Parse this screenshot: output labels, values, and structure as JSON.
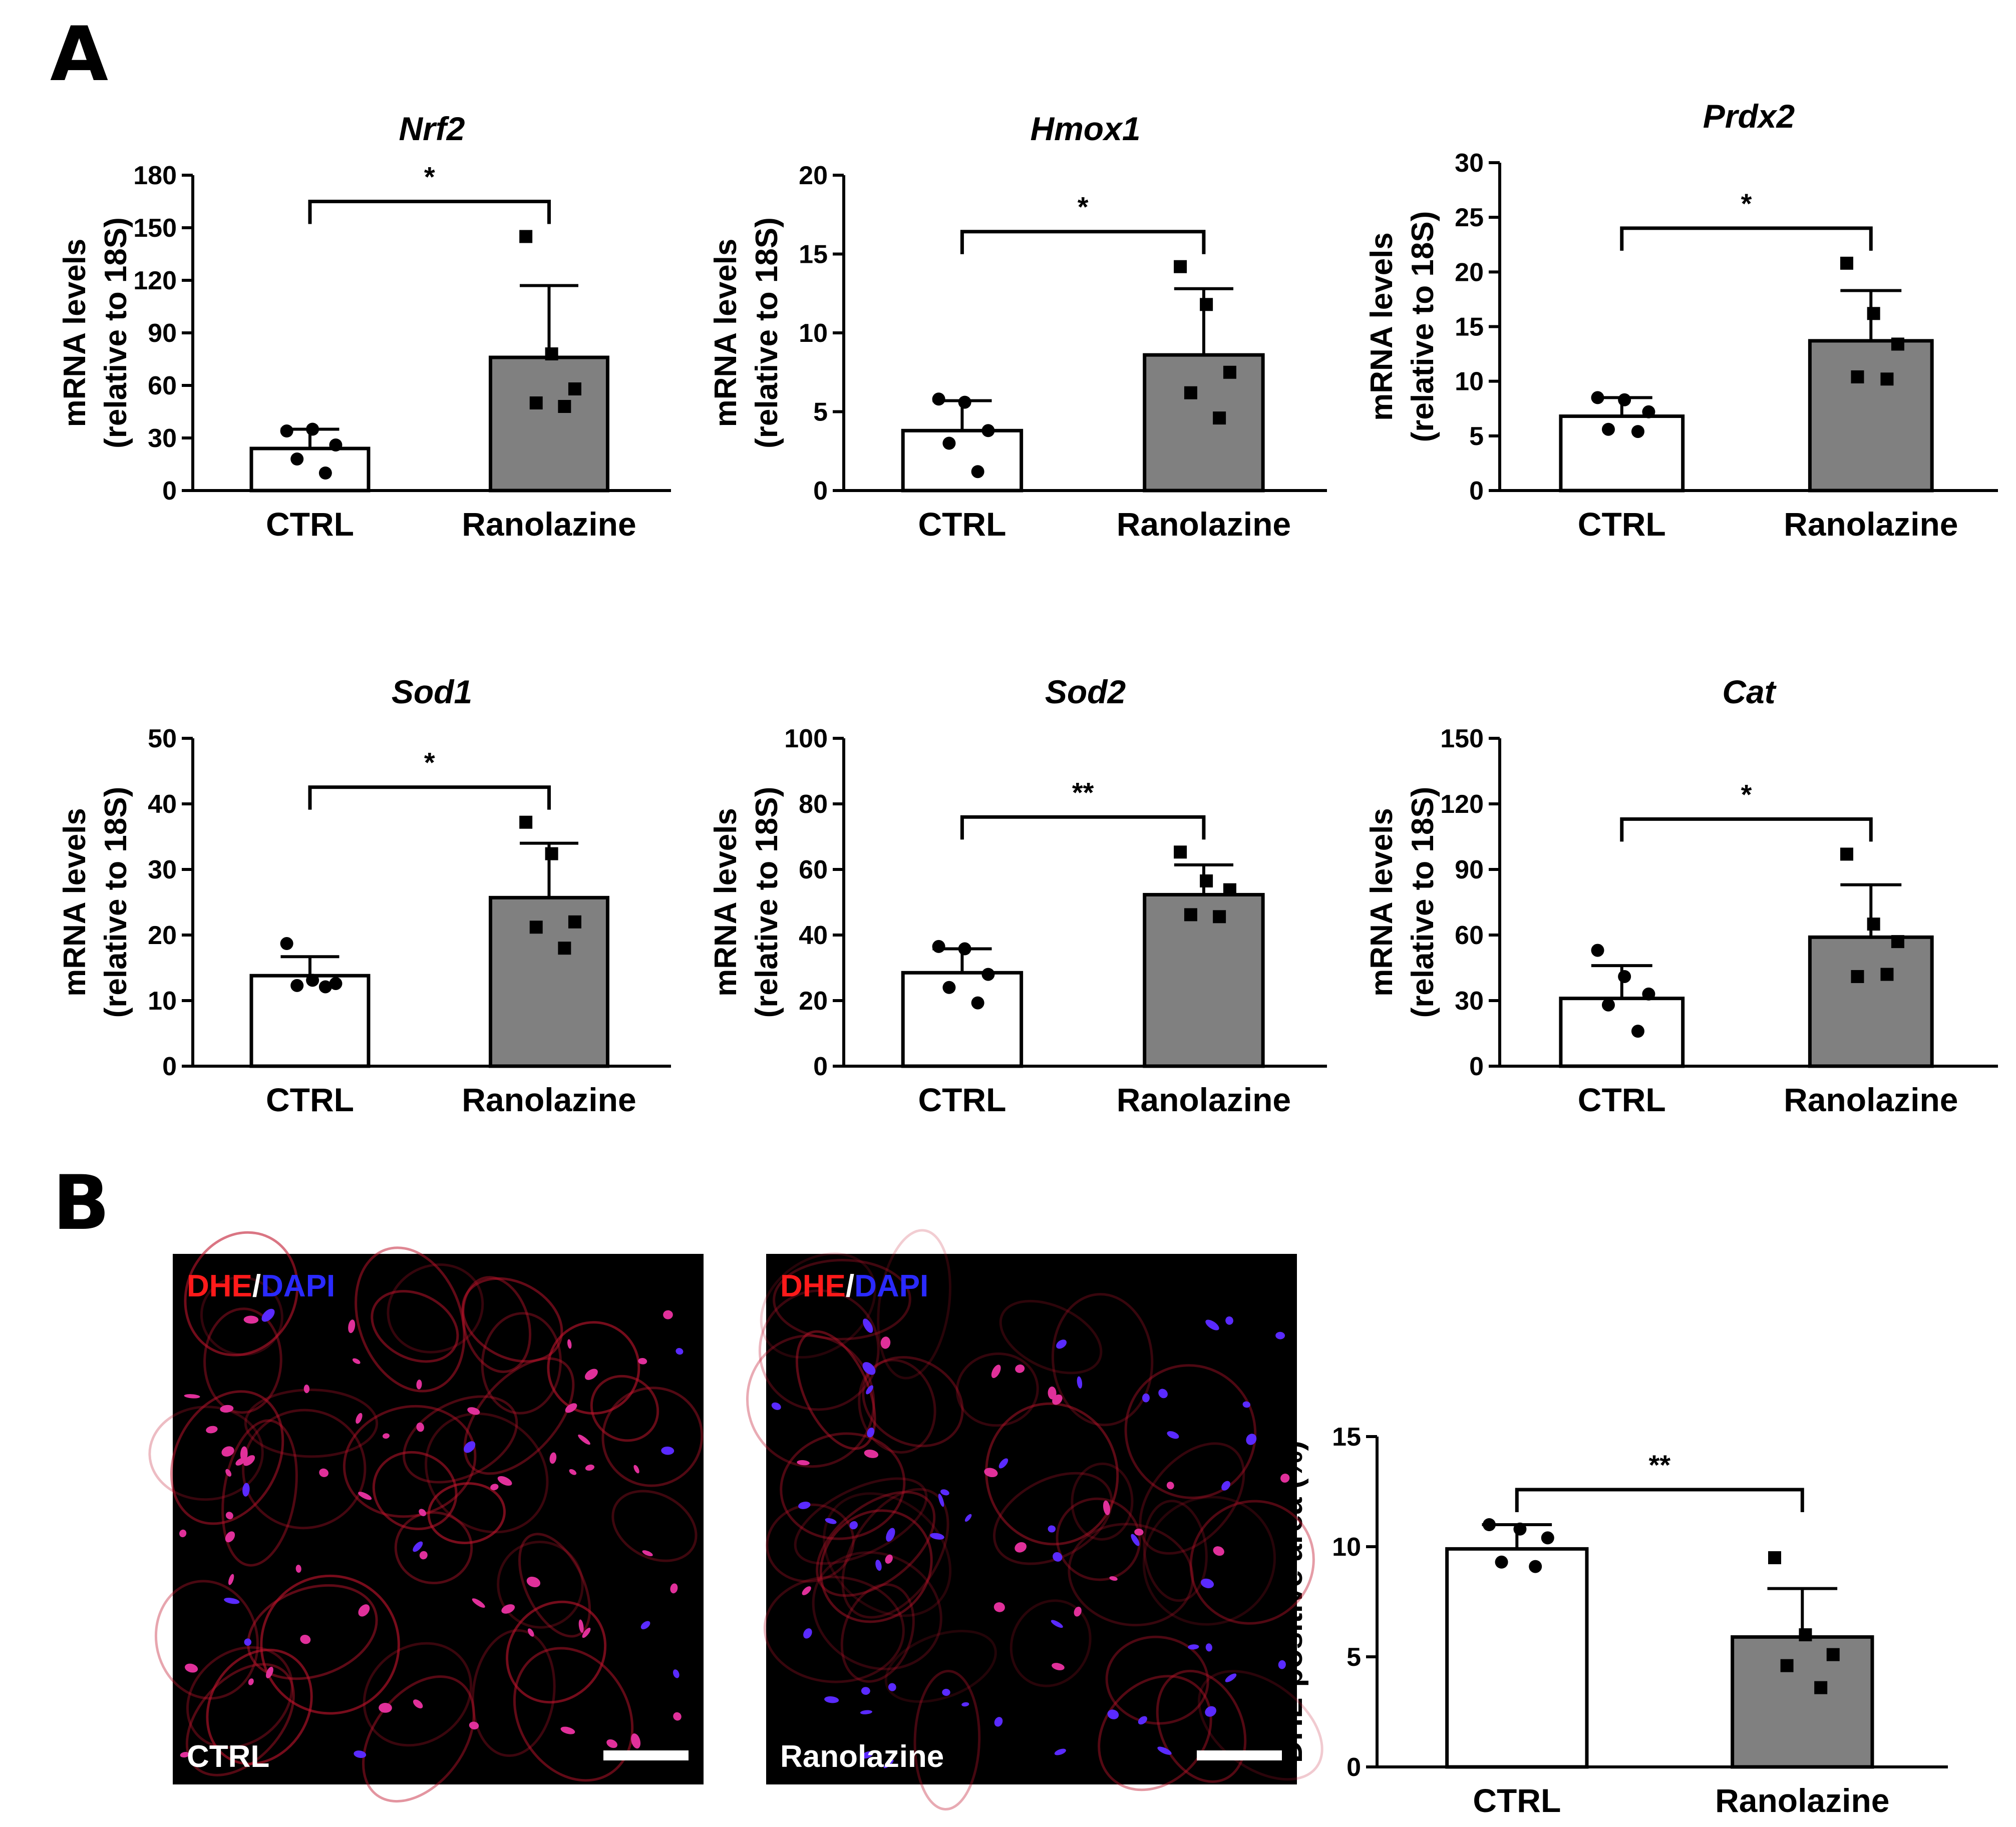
{
  "panels": {
    "A": "A",
    "B": "B"
  },
  "colors": {
    "ctrl_fill": "#ffffff",
    "ranolazine_fill": "#808080",
    "stroke": "#000000",
    "dhe_red": "#ff1a1a",
    "dapi_blue": "#2a2aff",
    "separator_white": "#ffffff",
    "micrograph_background": "#000000"
  },
  "micrographs": [
    {
      "stain_dhe": "DHE",
      "separator": "/",
      "stain_dapi": "DAPI",
      "label": "CTRL"
    },
    {
      "stain_dhe": "DHE",
      "separator": "/",
      "stain_dapi": "DAPI",
      "label": "Ranolazine"
    }
  ],
  "chart_data": [
    {
      "type": "bar",
      "title": "Nrf2",
      "ylabel": [
        "mRNA levels",
        "(relative to 18S)"
      ],
      "categories": [
        "CTRL",
        "Ranolazine"
      ],
      "ylim": [
        0,
        180
      ],
      "yticks": [
        0,
        30,
        60,
        90,
        120,
        150,
        180
      ],
      "values": [
        24,
        76
      ],
      "errors": [
        11,
        41
      ],
      "points": [
        [
          34,
          35,
          26,
          18,
          10
        ],
        [
          145,
          78,
          58,
          50,
          48
        ]
      ],
      "markers": [
        "circle",
        "square"
      ],
      "significance": "*"
    },
    {
      "type": "bar",
      "title": "Hmox1",
      "ylabel": [
        "mRNA levels",
        "(relative to 18S)"
      ],
      "categories": [
        "CTRL",
        "Ranolazine"
      ],
      "ylim": [
        0,
        20
      ],
      "yticks": [
        0,
        5,
        10,
        15,
        20
      ],
      "values": [
        3.8,
        8.6
      ],
      "errors": [
        1.9,
        4.2
      ],
      "points": [
        [
          5.8,
          5.6,
          3.8,
          3.0,
          1.2
        ],
        [
          14.2,
          11.8,
          7.5,
          6.2,
          4.6
        ]
      ],
      "markers": [
        "circle",
        "square"
      ],
      "significance": "*"
    },
    {
      "type": "bar",
      "title": "Prdx2",
      "ylabel": [
        "mRNA levels",
        "(relative to 18S)"
      ],
      "categories": [
        "CTRL",
        "Ranolazine"
      ],
      "ylim": [
        0,
        30
      ],
      "yticks": [
        0,
        5,
        10,
        15,
        20,
        25,
        30
      ],
      "values": [
        6.8,
        13.7
      ],
      "errors": [
        1.7,
        4.6
      ],
      "points": [
        [
          8.5,
          8.3,
          7.2,
          5.6,
          5.4
        ],
        [
          20.8,
          16.2,
          13.4,
          10.4,
          10.2
        ]
      ],
      "markers": [
        "circle",
        "square"
      ],
      "significance": "*"
    },
    {
      "type": "bar",
      "title": "Sod1",
      "ylabel": [
        "mRNA levels",
        "(relative to 18S)"
      ],
      "categories": [
        "CTRL",
        "Ranolazine"
      ],
      "ylim": [
        0,
        50
      ],
      "yticks": [
        0,
        10,
        20,
        30,
        40,
        50
      ],
      "values": [
        13.8,
        25.7
      ],
      "errors": [
        2.9,
        8.3
      ],
      "points": [
        [
          18.7,
          13.1,
          12.6,
          12.3,
          12.1
        ],
        [
          37.2,
          32.4,
          22.0,
          21.2,
          18.0
        ]
      ],
      "markers": [
        "circle",
        "square"
      ],
      "significance": "*"
    },
    {
      "type": "bar",
      "title": "Sod2",
      "ylabel": [
        "mRNA levels",
        "(relative to 18S)"
      ],
      "categories": [
        "CTRL",
        "Ranolazine"
      ],
      "ylim": [
        0,
        100
      ],
      "yticks": [
        0,
        20,
        40,
        60,
        80,
        100
      ],
      "values": [
        28.5,
        52.3
      ],
      "errors": [
        7.3,
        9.1
      ],
      "points": [
        [
          36.5,
          35.8,
          28.0,
          24.0,
          19.3
        ],
        [
          65.3,
          56.5,
          53.8,
          46.2,
          45.6
        ]
      ],
      "markers": [
        "circle",
        "square"
      ],
      "significance": "**"
    },
    {
      "type": "bar",
      "title": "Cat",
      "ylabel": [
        "mRNA levels",
        "(relative to 18S)"
      ],
      "categories": [
        "CTRL",
        "Ranolazine"
      ],
      "ylim": [
        0,
        150
      ],
      "yticks": [
        0,
        30,
        60,
        90,
        120,
        150
      ],
      "values": [
        31,
        59
      ],
      "errors": [
        15,
        24
      ],
      "points": [
        [
          53,
          41,
          33,
          28,
          16
        ],
        [
          97,
          65,
          57,
          41,
          42
        ]
      ],
      "markers": [
        "circle",
        "square"
      ],
      "significance": "*"
    },
    {
      "type": "bar",
      "title": "",
      "ylabel": [
        "DHE-positive area (%)"
      ],
      "categories": [
        "CTRL",
        "Ranolazine"
      ],
      "ylim": [
        0,
        15
      ],
      "yticks": [
        0,
        5,
        10,
        15
      ],
      "values": [
        9.9,
        5.9
      ],
      "errors": [
        1.1,
        2.2
      ],
      "points": [
        [
          11.0,
          10.8,
          10.4,
          9.3,
          9.1
        ],
        [
          9.5,
          6.0,
          5.1,
          4.6,
          3.6
        ]
      ],
      "markers": [
        "circle",
        "square"
      ],
      "significance": "**"
    }
  ]
}
